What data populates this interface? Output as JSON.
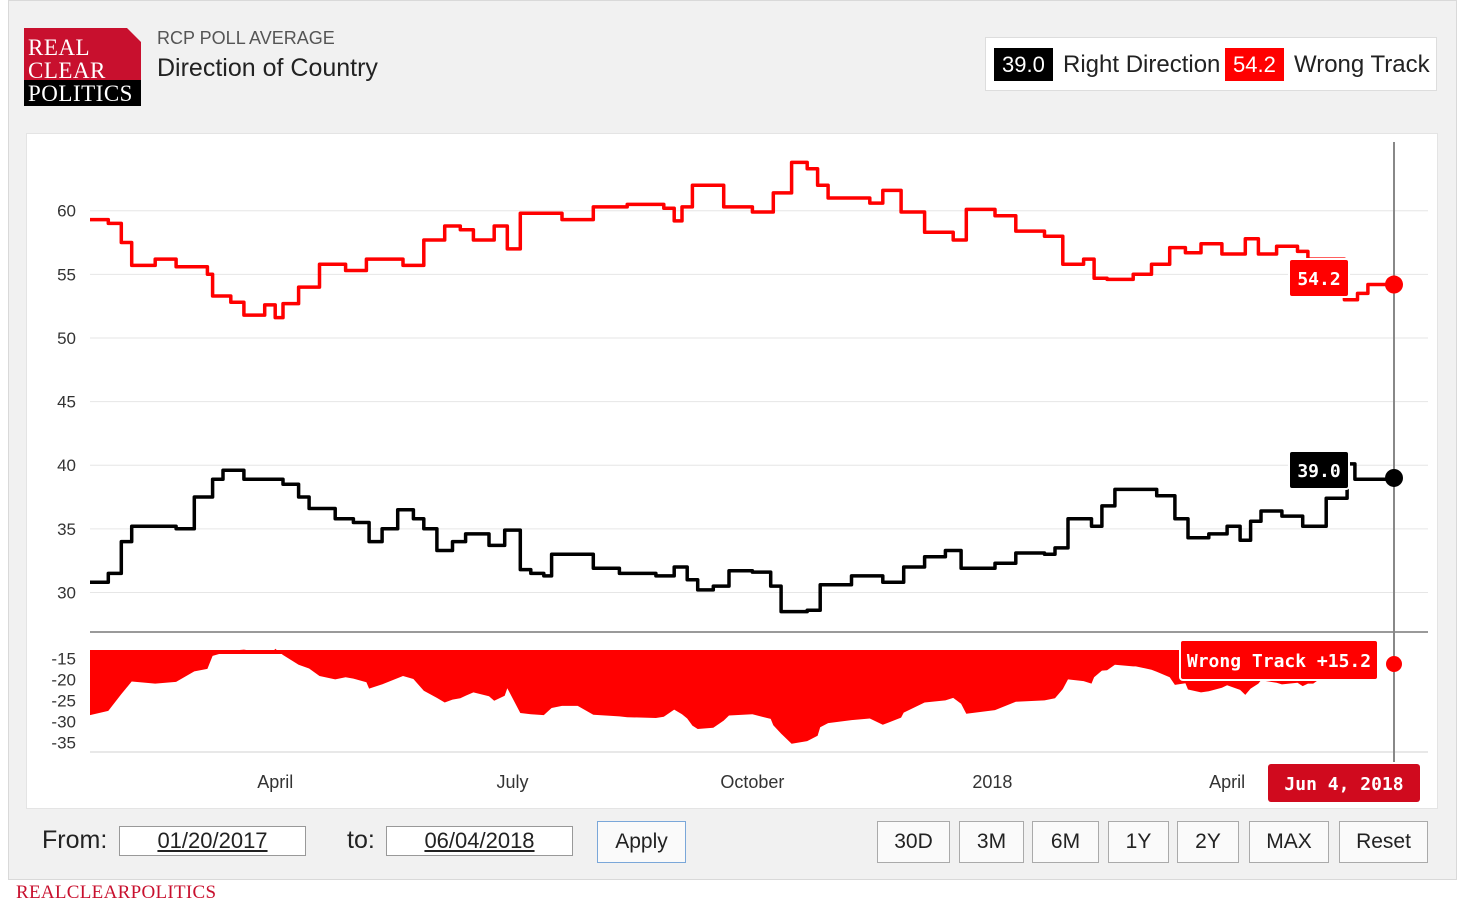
{
  "header": {
    "logo_lines": [
      "REAL",
      "CLEAR",
      "POLITICS"
    ],
    "supertitle": "RCP POLL AVERAGE",
    "title": "Direction of Country"
  },
  "legend": [
    {
      "value": "39.0",
      "label": "Right Direction",
      "color": "#000000"
    },
    {
      "value": "54.2",
      "label": "Wrong Track",
      "color": "#ff0000"
    }
  ],
  "controls": {
    "from_label": "From:",
    "from_value": "01/20/2017",
    "to_label": "to:",
    "to_value": "06/04/2018",
    "apply_label": "Apply",
    "range_buttons": [
      "30D",
      "3M",
      "6M",
      "1Y",
      "2Y",
      "MAX",
      "Reset"
    ]
  },
  "footer": "REALCLEARPOLITICS",
  "chart_data": {
    "type": "line",
    "x_range": [
      "2017-01-20",
      "2018-06-04"
    ],
    "x_tick_labels": [
      "April",
      "July",
      "October",
      "2018",
      "April"
    ],
    "y_ticks": [
      30,
      35,
      40,
      45,
      50,
      55,
      60
    ],
    "y_range": [
      26.5,
      65.4
    ],
    "series": [
      {
        "name": "Wrong Track",
        "color": "#ff0000",
        "points": [
          [
            "2017-01-20",
            59.3
          ],
          [
            "2017-01-27",
            59
          ],
          [
            "2017-02-01",
            57.5
          ],
          [
            "2017-02-05",
            55.7
          ],
          [
            "2017-02-14",
            56.2
          ],
          [
            "2017-02-22",
            55.6
          ],
          [
            "2017-03-06",
            55
          ],
          [
            "2017-03-08",
            53.3
          ],
          [
            "2017-03-15",
            52.8
          ],
          [
            "2017-03-20",
            51.8
          ],
          [
            "2017-03-28",
            52.6
          ],
          [
            "2017-04-01",
            51.6
          ],
          [
            "2017-04-04",
            52.7
          ],
          [
            "2017-04-10",
            54
          ],
          [
            "2017-04-18",
            55.8
          ],
          [
            "2017-04-28",
            55.3
          ],
          [
            "2017-05-06",
            56.2
          ],
          [
            "2017-05-20",
            55.7
          ],
          [
            "2017-05-28",
            57.7
          ],
          [
            "2017-06-05",
            58.8
          ],
          [
            "2017-06-11",
            58.5
          ],
          [
            "2017-06-16",
            57.7
          ],
          [
            "2017-06-24",
            58.8
          ],
          [
            "2017-06-29",
            57
          ],
          [
            "2017-07-04",
            59.8
          ],
          [
            "2017-07-20",
            59.3
          ],
          [
            "2017-08-01",
            60.3
          ],
          [
            "2017-08-14",
            60.5
          ],
          [
            "2017-08-28",
            60.2
          ],
          [
            "2017-09-01",
            59.2
          ],
          [
            "2017-09-04",
            60.3
          ],
          [
            "2017-09-08",
            62
          ],
          [
            "2017-09-20",
            60.3
          ],
          [
            "2017-10-01",
            59.9
          ],
          [
            "2017-10-09",
            61.4
          ],
          [
            "2017-10-16",
            63.8
          ],
          [
            "2017-10-22",
            63.3
          ],
          [
            "2017-10-26",
            62
          ],
          [
            "2017-10-30",
            61
          ],
          [
            "2017-11-08",
            61
          ],
          [
            "2017-11-15",
            60.6
          ],
          [
            "2017-11-20",
            61.6
          ],
          [
            "2017-11-27",
            59.9
          ],
          [
            "2017-12-06",
            58.3
          ],
          [
            "2017-12-17",
            57.7
          ],
          [
            "2017-12-22",
            60.1
          ],
          [
            "2018-01-02",
            59.6
          ],
          [
            "2018-01-10",
            58.4
          ],
          [
            "2018-01-21",
            58
          ],
          [
            "2018-01-28",
            55.8
          ],
          [
            "2018-02-05",
            56.2
          ],
          [
            "2018-02-09",
            54.7
          ],
          [
            "2018-02-14",
            54.6
          ],
          [
            "2018-02-24",
            55
          ],
          [
            "2018-03-03",
            55.8
          ],
          [
            "2018-03-10",
            57.1
          ],
          [
            "2018-03-16",
            56.7
          ],
          [
            "2018-03-22",
            57.4
          ],
          [
            "2018-03-30",
            56.6
          ],
          [
            "2018-04-08",
            57.8
          ],
          [
            "2018-04-13",
            56.6
          ],
          [
            "2018-04-20",
            57.2
          ],
          [
            "2018-04-28",
            56.8
          ],
          [
            "2018-05-02",
            56.2
          ],
          [
            "2018-05-16",
            53
          ],
          [
            "2018-05-21",
            53.5
          ],
          [
            "2018-05-25",
            54.2
          ],
          [
            "2018-06-04",
            54.2
          ]
        ]
      },
      {
        "name": "Right Direction",
        "color": "#000000",
        "points": [
          [
            "2017-01-20",
            30.8
          ],
          [
            "2017-01-27",
            31.5
          ],
          [
            "2017-02-01",
            34
          ],
          [
            "2017-02-05",
            35.2
          ],
          [
            "2017-02-22",
            35
          ],
          [
            "2017-03-01",
            37.5
          ],
          [
            "2017-03-08",
            38.9
          ],
          [
            "2017-03-12",
            39.6
          ],
          [
            "2017-03-20",
            38.9
          ],
          [
            "2017-03-31",
            38.9
          ],
          [
            "2017-04-04",
            38.5
          ],
          [
            "2017-04-10",
            37.5
          ],
          [
            "2017-04-14",
            36.6
          ],
          [
            "2017-04-24",
            35.8
          ],
          [
            "2017-05-01",
            35.5
          ],
          [
            "2017-05-07",
            34
          ],
          [
            "2017-05-12",
            35
          ],
          [
            "2017-05-18",
            36.5
          ],
          [
            "2017-05-24",
            35.8
          ],
          [
            "2017-05-28",
            35
          ],
          [
            "2017-06-02",
            33.3
          ],
          [
            "2017-06-08",
            34
          ],
          [
            "2017-06-13",
            34.6
          ],
          [
            "2017-06-22",
            33.7
          ],
          [
            "2017-06-28",
            34.9
          ],
          [
            "2017-07-04",
            31.8
          ],
          [
            "2017-07-08",
            31.5
          ],
          [
            "2017-07-13",
            31.3
          ],
          [
            "2017-07-16",
            33
          ],
          [
            "2017-07-26",
            33
          ],
          [
            "2017-08-01",
            31.9
          ],
          [
            "2017-08-11",
            31.5
          ],
          [
            "2017-08-25",
            31.3
          ],
          [
            "2017-09-01",
            32
          ],
          [
            "2017-09-06",
            31
          ],
          [
            "2017-09-10",
            30.2
          ],
          [
            "2017-09-16",
            30.5
          ],
          [
            "2017-09-22",
            31.7
          ],
          [
            "2017-10-01",
            31.6
          ],
          [
            "2017-10-08",
            30.5
          ],
          [
            "2017-10-12",
            28.5
          ],
          [
            "2017-10-22",
            28.6
          ],
          [
            "2017-10-27",
            30.6
          ],
          [
            "2017-11-08",
            31.3
          ],
          [
            "2017-11-20",
            30.8
          ],
          [
            "2017-11-28",
            32
          ],
          [
            "2017-12-06",
            32.8
          ],
          [
            "2017-12-14",
            33.3
          ],
          [
            "2017-12-20",
            31.9
          ],
          [
            "2018-01-02",
            32.3
          ],
          [
            "2018-01-10",
            33.1
          ],
          [
            "2018-01-21",
            33
          ],
          [
            "2018-01-25",
            33.5
          ],
          [
            "2018-01-30",
            35.8
          ],
          [
            "2018-02-08",
            35.2
          ],
          [
            "2018-02-12",
            36.8
          ],
          [
            "2018-02-17",
            38.1
          ],
          [
            "2018-02-25",
            38.1
          ],
          [
            "2018-03-05",
            37.6
          ],
          [
            "2018-03-12",
            35.8
          ],
          [
            "2018-03-17",
            34.3
          ],
          [
            "2018-03-25",
            34.6
          ],
          [
            "2018-04-01",
            35.2
          ],
          [
            "2018-04-06",
            34.1
          ],
          [
            "2018-04-10",
            35.6
          ],
          [
            "2018-04-14",
            36.4
          ],
          [
            "2018-04-22",
            36
          ],
          [
            "2018-04-30",
            35.2
          ],
          [
            "2018-05-04",
            35.2
          ],
          [
            "2018-05-09",
            37.4
          ],
          [
            "2018-05-17",
            40.1
          ],
          [
            "2018-05-20",
            38.9
          ],
          [
            "2018-06-04",
            39.0
          ]
        ]
      }
    ],
    "spread": {
      "name": "Wrong Track",
      "y_ticks": [
        -15,
        -20,
        -25,
        -30,
        -35
      ],
      "tick_labels": [
        "-15",
        "-20",
        "-25",
        "-30",
        "-35"
      ],
      "color": "#ff0000",
      "callout": "Wrong Track +15.2"
    },
    "tooltips": {
      "wrong": "54.2",
      "right": "39.0",
      "date": "Jun 4, 2018"
    }
  }
}
